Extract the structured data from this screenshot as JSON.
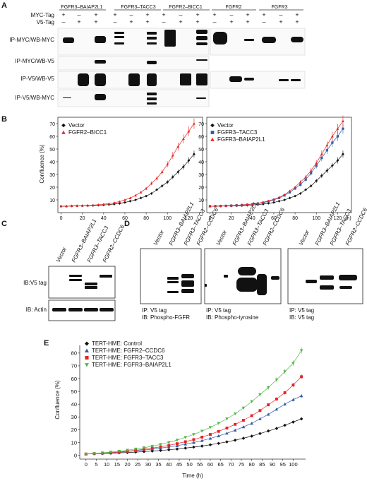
{
  "panel_a": {
    "label": "A",
    "group_labels": [
      "FGFR3–BAIAP2L1",
      "FGFR3–TACC3",
      "FGFR2–BICC1",
      "FGFR2",
      "FGFR3"
    ],
    "row_tags": [
      "MYC-Tag",
      "V5-Tag"
    ],
    "myc_row": [
      "+",
      "–",
      "+",
      "+",
      "–",
      "+",
      "+",
      "–",
      "+",
      "+",
      "–",
      "+",
      "+",
      "–",
      "+"
    ],
    "v5_row": [
      "–",
      "+",
      "+",
      "–",
      "+",
      "+",
      "–",
      "+",
      "+",
      "–",
      "+",
      "+",
      "–",
      "+",
      "+"
    ],
    "blot_labels": [
      "IP-MYC/WB-MYC",
      "IP-MYC/WB-V5",
      "IP-V5/WB-V5",
      "IP-V5/WB-MYC"
    ]
  },
  "panel_b": {
    "label": "B",
    "charts": [
      {
        "chart_data": {
          "type": "line",
          "ylabel": "Confluence (%)",
          "x_ticks": [
            0,
            20,
            40,
            60,
            80,
            100,
            120
          ],
          "y_ticks": [
            10,
            20,
            30,
            40,
            50,
            60,
            70
          ],
          "xlim": [
            -3,
            133
          ],
          "ylim": [
            0,
            75
          ],
          "series": [
            {
              "name": "Vector",
              "color": "#111111",
              "marker": "diamond",
              "x": [
                0,
                5,
                10,
                15,
                20,
                25,
                30,
                35,
                40,
                45,
                50,
                55,
                60,
                65,
                70,
                75,
                80,
                85,
                90,
                95,
                100,
                105,
                110,
                115,
                120,
                125
              ],
              "y": [
                5,
                5,
                5.2,
                5.3,
                5.4,
                5.5,
                5.6,
                5.8,
                6,
                6.3,
                6.7,
                7.2,
                8,
                9,
                10,
                11.5,
                13,
                15,
                18,
                21,
                24,
                28,
                32,
                36,
                41,
                46
              ]
            },
            {
              "name": "FGFR2–BICC1",
              "color": "#e52421",
              "marker": "triangle",
              "x": [
                0,
                5,
                10,
                15,
                20,
                25,
                30,
                35,
                40,
                45,
                50,
                55,
                60,
                65,
                70,
                75,
                80,
                85,
                90,
                95,
                100,
                105,
                110,
                115,
                120,
                125
              ],
              "y": [
                5,
                5.1,
                5.3,
                5.4,
                5.5,
                5.7,
                5.9,
                6.2,
                6.6,
                7.1,
                7.8,
                8.7,
                10,
                11.5,
                13.5,
                16,
                19,
                23,
                27,
                32,
                38,
                45,
                52,
                58,
                64,
                70
              ]
            }
          ]
        }
      },
      {
        "chart_data": {
          "type": "line",
          "x_ticks": [
            0,
            20,
            40,
            60,
            80,
            100,
            120
          ],
          "x_unit": "(h)",
          "y_ticks": [
            10,
            20,
            30,
            40,
            50,
            60,
            70
          ],
          "xlim": [
            -3,
            133
          ],
          "ylim": [
            0,
            75
          ],
          "series": [
            {
              "name": "Vector",
              "color": "#111111",
              "marker": "diamond",
              "x": [
                0,
                5,
                10,
                15,
                20,
                25,
                30,
                35,
                40,
                45,
                50,
                55,
                60,
                65,
                70,
                75,
                80,
                85,
                90,
                95,
                100,
                105,
                110,
                115,
                120,
                125
              ],
              "y": [
                5,
                5,
                5.1,
                5.2,
                5.3,
                5.4,
                5.5,
                5.7,
                6,
                6.3,
                6.7,
                7.3,
                8,
                9,
                10,
                11.5,
                13,
                15,
                18,
                21,
                25,
                29,
                33,
                37,
                41,
                46
              ]
            },
            {
              "name": "FGFR3–TACC3",
              "color": "#2e5aa8",
              "marker": "square",
              "x": [
                0,
                5,
                10,
                15,
                20,
                25,
                30,
                35,
                40,
                45,
                50,
                55,
                60,
                65,
                70,
                75,
                80,
                85,
                90,
                95,
                100,
                105,
                110,
                115,
                120,
                125
              ],
              "y": [
                5,
                5.1,
                5.2,
                5.3,
                5.5,
                5.7,
                5.9,
                6.2,
                6.6,
                7.1,
                7.8,
                8.8,
                10,
                11.5,
                13.5,
                16,
                19,
                22,
                26,
                31,
                37,
                43,
                49,
                55,
                60,
                66
              ]
            },
            {
              "name": "FGFR3–BAIAP2L1",
              "color": "#e52421",
              "marker": "triangle",
              "x": [
                0,
                5,
                10,
                15,
                20,
                25,
                30,
                35,
                40,
                45,
                50,
                55,
                60,
                65,
                70,
                75,
                80,
                85,
                90,
                95,
                100,
                105,
                110,
                115,
                120,
                125
              ],
              "y": [
                5,
                5.1,
                5.3,
                5.4,
                5.6,
                5.8,
                6.1,
                6.4,
                6.8,
                7.4,
                8.2,
                9.2,
                10.5,
                12,
                14,
                17,
                20,
                24,
                28,
                33,
                39,
                46,
                53,
                60,
                66,
                72
              ]
            }
          ]
        }
      }
    ]
  },
  "panel_c": {
    "label": "C",
    "lanes": [
      "Vector",
      "FGFR3–BAIAP2L1",
      "FGFR3–TACC3",
      "FGFR2–CCDC6"
    ],
    "blot_labels": [
      "IB:V5 tag",
      "IB: Actin"
    ]
  },
  "panel_d": {
    "label": "D",
    "lanes": [
      "Vector",
      "FGFR3–BAIAP2L1",
      "FGFR3–TACC3",
      "FGFR2–CCDC6"
    ],
    "blots": [
      {
        "line1": "IP: V5 tag",
        "line2": "IB: Phospho-FGFR"
      },
      {
        "line1": "IP: V5 tag",
        "line2": "IB: Phospho-tyrosine"
      },
      {
        "line1": "IP: V5 tag",
        "line2": "IB: V5 tag"
      }
    ]
  },
  "panel_e": {
    "label": "E",
    "chart_data": {
      "type": "line",
      "xlabel": "Time (h)",
      "ylabel": "Confluence (%)",
      "x_ticks": [
        0,
        5,
        10,
        15,
        20,
        25,
        30,
        35,
        40,
        45,
        50,
        55,
        60,
        65,
        70,
        75,
        80,
        85,
        90,
        95,
        100
      ],
      "y_ticks": [
        0,
        10,
        20,
        30,
        40,
        50,
        60,
        70,
        80
      ],
      "xlim": [
        -3,
        106
      ],
      "ylim": [
        -3,
        86
      ],
      "series": [
        {
          "name": "TERT-HME: Control",
          "color": "#111111",
          "marker": "diamond",
          "x": [
            0,
            4,
            8,
            12,
            16,
            20,
            24,
            28,
            32,
            36,
            40,
            44,
            48,
            52,
            56,
            60,
            64,
            68,
            72,
            76,
            80,
            84,
            88,
            92,
            96,
            100,
            104
          ],
          "y": [
            1,
            1.2,
            1.4,
            1.6,
            1.9,
            2.2,
            2.5,
            2.9,
            3.3,
            3.8,
            4.3,
            4.9,
            5.6,
            6.4,
            7.2,
            8.2,
            9.3,
            10.5,
            11.8,
            13.3,
            15,
            17,
            19,
            21,
            23.5,
            26,
            28.5
          ]
        },
        {
          "name": "TERT-HME: FGFR2–CCDC6",
          "color": "#2e5aa8",
          "marker": "triangle",
          "x": [
            0,
            4,
            8,
            12,
            16,
            20,
            24,
            28,
            32,
            36,
            40,
            44,
            48,
            52,
            56,
            60,
            64,
            68,
            72,
            76,
            80,
            84,
            88,
            92,
            96,
            100,
            104
          ],
          "y": [
            1,
            1.3,
            1.6,
            2,
            2.4,
            2.9,
            3.5,
            4.1,
            4.8,
            5.6,
            6.5,
            7.5,
            8.7,
            10,
            11.5,
            13.2,
            15.1,
            17.2,
            19.6,
            22.2,
            25,
            28.5,
            32,
            36,
            40,
            43.5,
            46.5
          ]
        },
        {
          "name": "TERT-HME: FGFR3–TACC3",
          "color": "#e52421",
          "marker": "square",
          "x": [
            0,
            4,
            8,
            12,
            16,
            20,
            24,
            28,
            32,
            36,
            40,
            44,
            48,
            52,
            56,
            60,
            64,
            68,
            72,
            76,
            80,
            84,
            88,
            92,
            96,
            100,
            104
          ],
          "y": [
            1,
            1.3,
            1.7,
            2.1,
            2.6,
            3.2,
            3.9,
            4.7,
            5.6,
            6.6,
            7.8,
            9.1,
            10.6,
            12.3,
            14.2,
            16.3,
            18.7,
            21.3,
            24.2,
            27.4,
            31,
            35,
            39.5,
            44,
            49,
            55,
            61.5
          ]
        },
        {
          "name": "TERT-HME: FGFR3–BAIAP2L1",
          "color": "#52b848",
          "marker": "triangle-down",
          "x": [
            0,
            4,
            8,
            12,
            16,
            20,
            24,
            28,
            32,
            36,
            40,
            44,
            48,
            52,
            56,
            60,
            64,
            68,
            72,
            76,
            80,
            84,
            88,
            92,
            96,
            100,
            104
          ],
          "y": [
            1,
            1.4,
            1.9,
            2.5,
            3.2,
            4,
            4.9,
            5.9,
            7.1,
            8.5,
            10.1,
            11.9,
            14,
            16.3,
            18.9,
            21.8,
            25,
            28.5,
            32.5,
            37,
            42,
            47.5,
            53,
            59,
            65.5,
            72,
            82
          ]
        }
      ]
    }
  }
}
